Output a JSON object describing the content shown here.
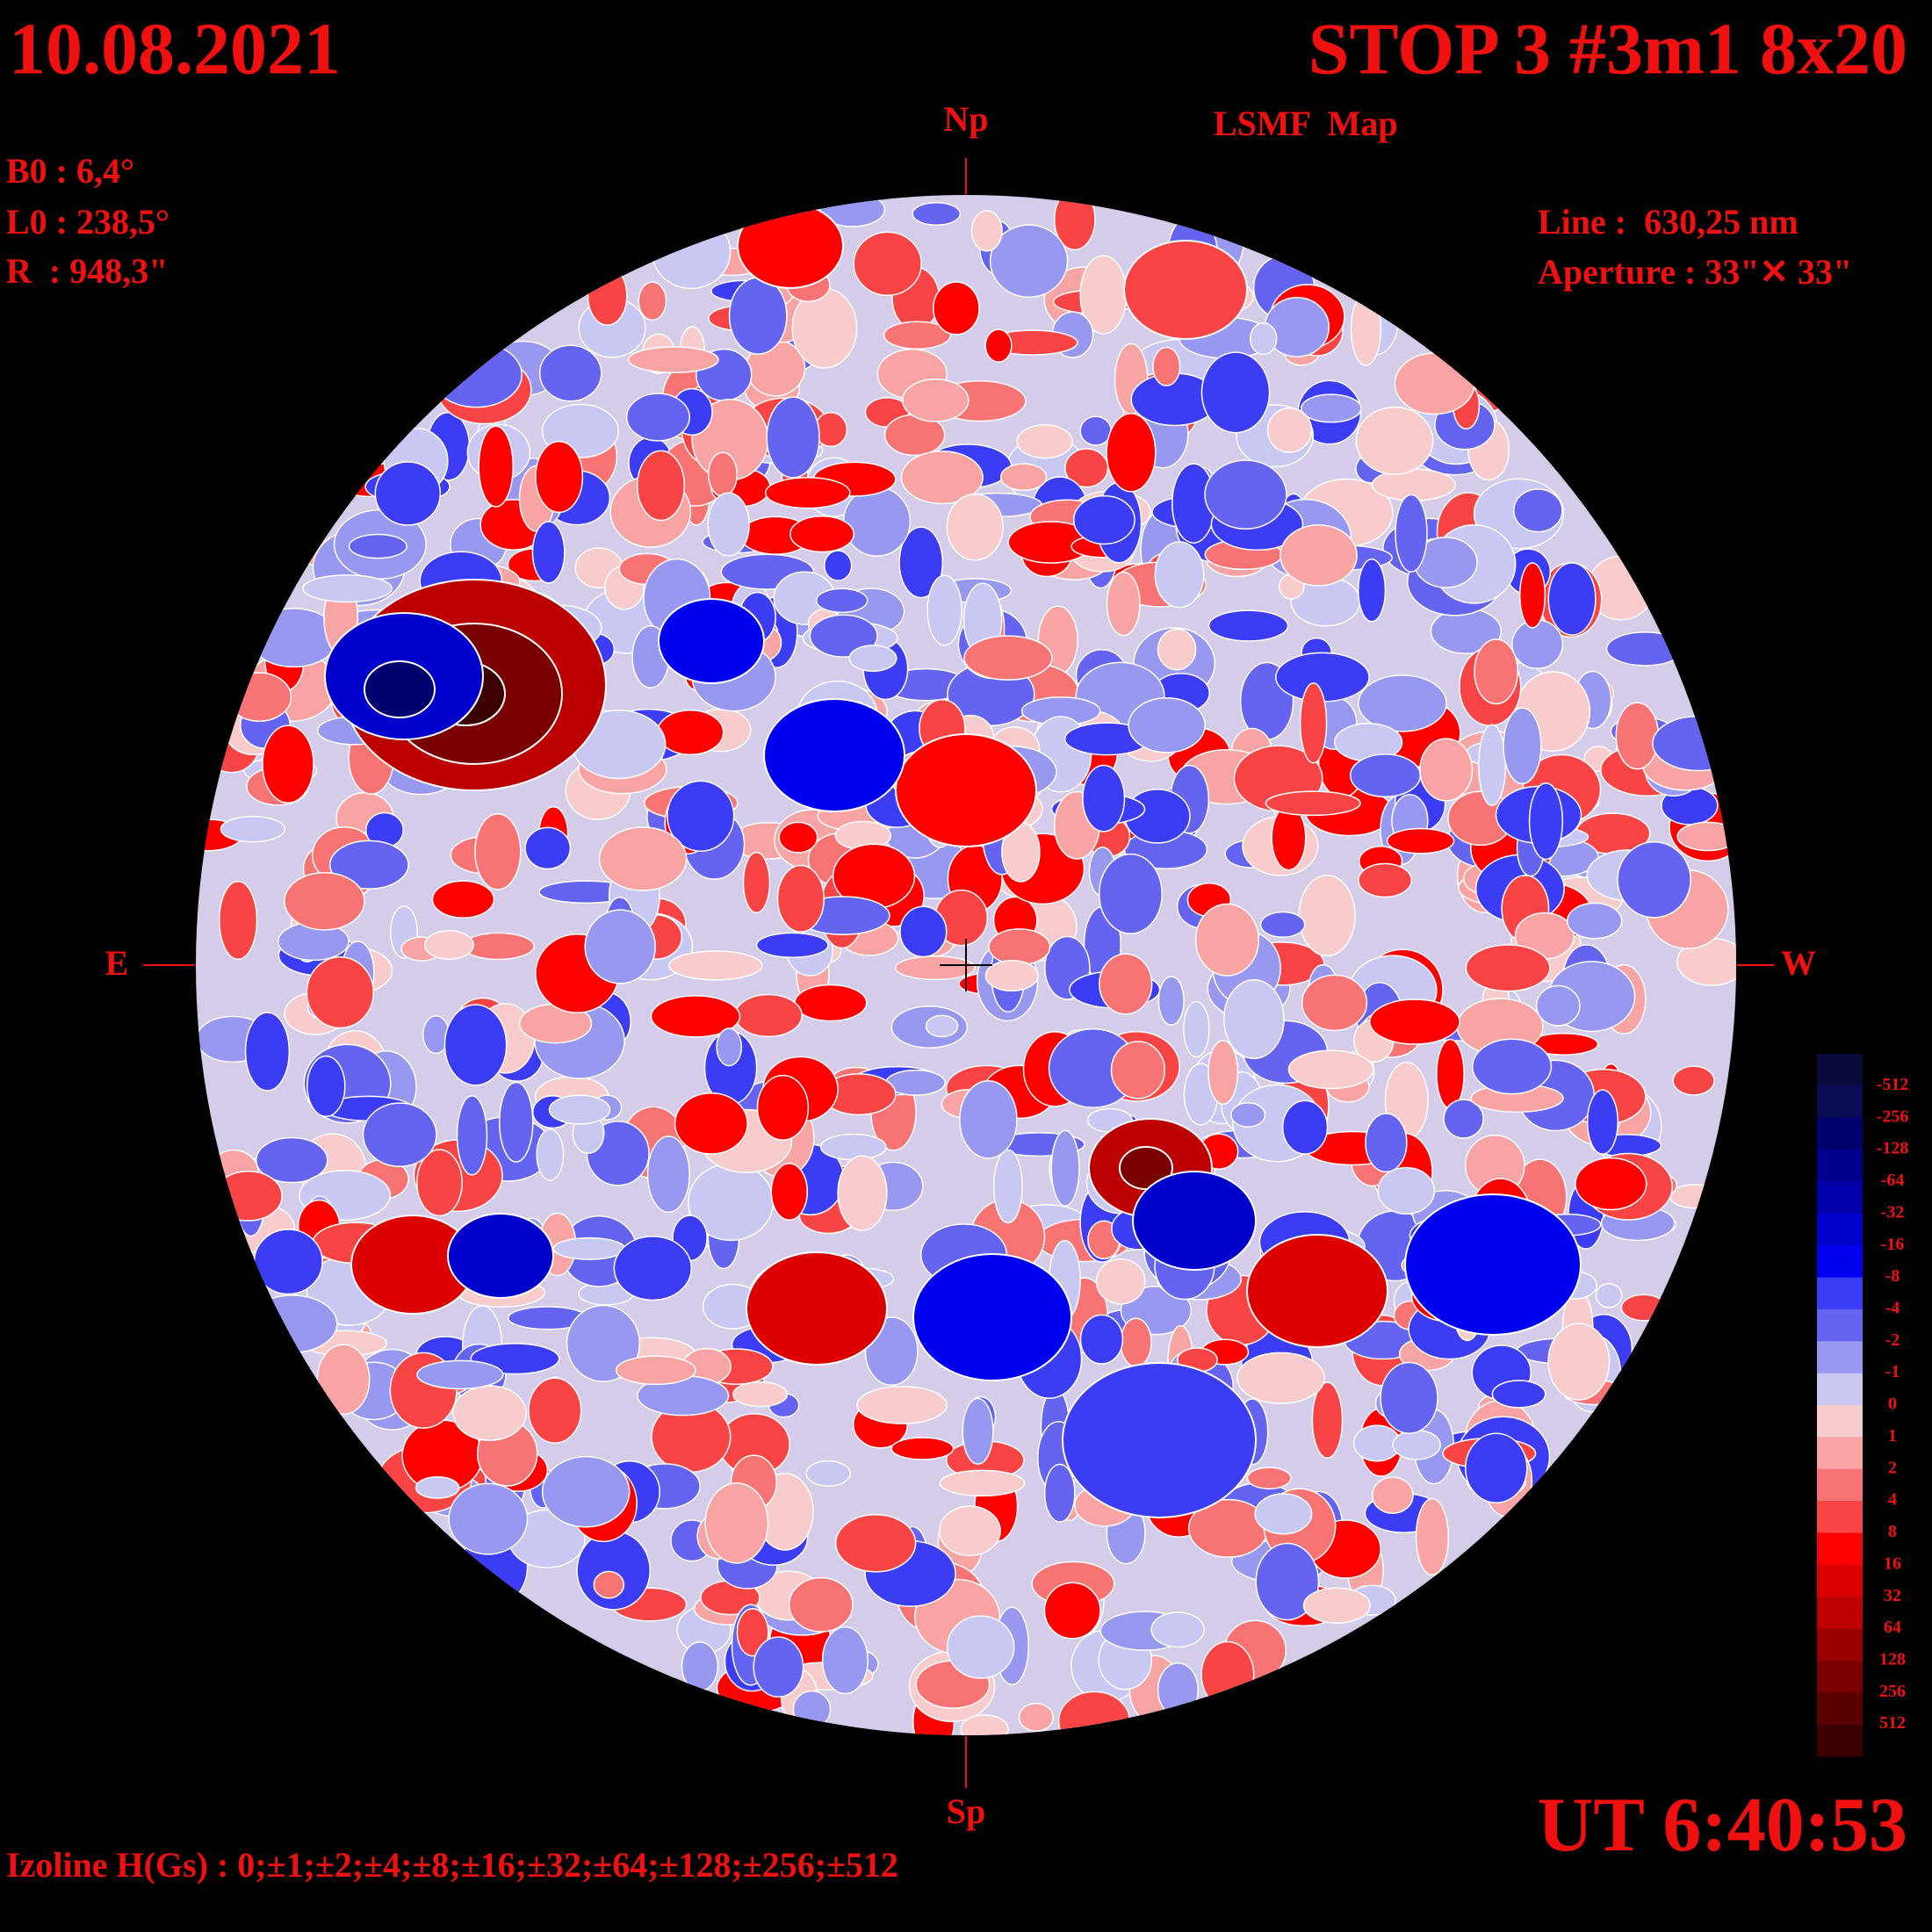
{
  "header": {
    "date": "10.08.2021",
    "title": "STOP 3 #3m1 8x20",
    "subtitle": "LSMF  Map"
  },
  "parameters": {
    "b0": "B0 : 6,4°",
    "l0": "L0 : 238,5°",
    "r": "R  : 948,3\"",
    "line": "Line :  630,25 nm",
    "aperture": "Aperture : 33\"✕ 33\""
  },
  "compass": {
    "north": "Np",
    "south": "Sp",
    "east": "E",
    "west": "W"
  },
  "time": "UT 6:40:53",
  "isolines": "Izoline H(Gs) : 0;±1;±2;±4;±8;±16;±32;±64;±128;±256;±512",
  "colorbar": {
    "labels": [
      -512,
      -256,
      -128,
      -64,
      -32,
      -16,
      -8,
      -4,
      -2,
      -1,
      0,
      1,
      2,
      4,
      8,
      16,
      32,
      64,
      128,
      256,
      512
    ],
    "colors": [
      "#0a0a3c",
      "#0a0a55",
      "#00006e",
      "#00008c",
      "#0000aa",
      "#0000cc",
      "#0000f0",
      "#3c3cf5",
      "#6464f0",
      "#9898f0",
      "#c8c8f2",
      "#f8cccc",
      "#f8a4a4",
      "#f87474",
      "#f84444",
      "#ff0000",
      "#dc0000",
      "#bc0000",
      "#9a0000",
      "#7a0000",
      "#5a0000",
      "#3c0000"
    ]
  }
}
